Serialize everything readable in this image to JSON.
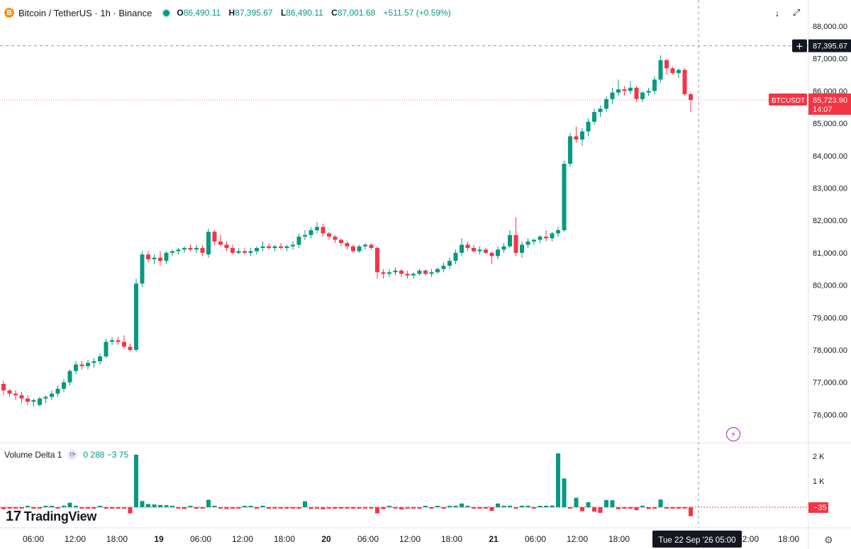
{
  "header": {
    "coin_icon": "B",
    "symbol_title": "Bitcoin / TetherUS · 1h · Binance",
    "ohlc": {
      "o_label": "O",
      "o": "86,490.11",
      "h_label": "H",
      "h": "87,395.67",
      "l_label": "L",
      "l": "86,490.11",
      "c_label": "C",
      "c": "87,001.68",
      "change": "+511.57 (+0.59%)"
    },
    "buttons": {
      "down_icon": "↓",
      "fullscreen_icon": "⤢"
    }
  },
  "price_axis": {
    "labels": [
      "88,000.00",
      "87,000.00",
      "86,000.00",
      "85,000.00",
      "84,000.00",
      "83,000.00",
      "82,000.00",
      "81,000.00",
      "80,000.00",
      "79,000.00",
      "78,000.00",
      "77,000.00",
      "76,000.00"
    ],
    "crosshair_price": "87,395.67",
    "crosshair_icon": "+",
    "symbol_tag": "BTCUSDT",
    "last_price": "85,723.90",
    "countdown": "14:07"
  },
  "volume": {
    "title": "Volume Delta",
    "param": "1",
    "settings_icon": "⟳",
    "values": "0  288  −3  75",
    "axis_labels": [
      "2 K",
      "1 K"
    ],
    "current": "−35"
  },
  "time_axis": {
    "labels": [
      "06:00",
      "12:00",
      "18:00",
      "19",
      "06:00",
      "12:00",
      "18:00",
      "20",
      "06:00",
      "12:00",
      "18:00",
      "21",
      "06:00",
      "12:00",
      "18:00",
      "12:00",
      "18:00"
    ],
    "crosshair_label": "Tue 22 Sep '26   05:00"
  },
  "branding": {
    "logo_mark": "17",
    "logo_text": "TradingView"
  },
  "icons": {
    "bolt": "⚡",
    "gear": "⚙"
  },
  "colors": {
    "up": "#089981",
    "down": "#f23645",
    "text": "#131722"
  },
  "chart_data": {
    "type": "candlestick",
    "interval": "1h",
    "ylim": [
      75500,
      88300
    ],
    "candles": [
      [
        76950,
        77050,
        76600,
        76750
      ],
      [
        76750,
        76800,
        76550,
        76650
      ],
      [
        76650,
        76750,
        76450,
        76600
      ],
      [
        76600,
        76700,
        76350,
        76500
      ],
      [
        76500,
        76600,
        76300,
        76400
      ],
      [
        76400,
        76500,
        76250,
        76450
      ],
      [
        76300,
        76550,
        76250,
        76500
      ],
      [
        76500,
        76600,
        76350,
        76550
      ],
      [
        76550,
        76750,
        76450,
        76650
      ],
      [
        76650,
        76900,
        76550,
        76800
      ],
      [
        76800,
        77100,
        76700,
        77000
      ],
      [
        77000,
        77400,
        76900,
        77350
      ],
      [
        77350,
        77650,
        77250,
        77550
      ],
      [
        77550,
        77650,
        77400,
        77500
      ],
      [
        77500,
        77700,
        77400,
        77600
      ],
      [
        77600,
        77750,
        77450,
        77650
      ],
      [
        77650,
        77900,
        77550,
        77800
      ],
      [
        77800,
        78350,
        77750,
        78250
      ],
      [
        78250,
        78400,
        78150,
        78300
      ],
      [
        78300,
        78400,
        78150,
        78250
      ],
      [
        78250,
        78450,
        78050,
        78100
      ],
      [
        78100,
        78200,
        77950,
        78000
      ],
      [
        78000,
        80200,
        77950,
        80050
      ],
      [
        80050,
        81050,
        79950,
        80950
      ],
      [
        80950,
        81050,
        80700,
        80800
      ],
      [
        80800,
        80950,
        80650,
        80850
      ],
      [
        80850,
        81050,
        80600,
        80750
      ],
      [
        80750,
        81050,
        80650,
        81000
      ],
      [
        81000,
        81100,
        80900,
        81050
      ],
      [
        81050,
        81150,
        80950,
        81100
      ],
      [
        81100,
        81200,
        81000,
        81150
      ],
      [
        81150,
        81250,
        81050,
        81100
      ],
      [
        81100,
        81250,
        81000,
        81150
      ],
      [
        81150,
        81250,
        80900,
        81000
      ],
      [
        80950,
        81750,
        80850,
        81650
      ],
      [
        81650,
        81700,
        81250,
        81350
      ],
      [
        81350,
        81550,
        81200,
        81250
      ],
      [
        81250,
        81350,
        81050,
        81150
      ],
      [
        81150,
        81250,
        80950,
        81000
      ],
      [
        81000,
        81150,
        80950,
        81050
      ],
      [
        81050,
        81150,
        80950,
        81000
      ],
      [
        81000,
        81150,
        80900,
        81050
      ],
      [
        81050,
        81200,
        80950,
        81150
      ],
      [
        81150,
        81350,
        81050,
        81200
      ],
      [
        81200,
        81300,
        81100,
        81150
      ],
      [
        81150,
        81250,
        81050,
        81200
      ],
      [
        81200,
        81300,
        81100,
        81150
      ],
      [
        81150,
        81250,
        81050,
        81200
      ],
      [
        81200,
        81350,
        81100,
        81250
      ],
      [
        81250,
        81600,
        81150,
        81500
      ],
      [
        81500,
        81700,
        81400,
        81550
      ],
      [
        81550,
        81800,
        81450,
        81700
      ],
      [
        81700,
        81950,
        81600,
        81800
      ],
      [
        81800,
        81900,
        81500,
        81600
      ],
      [
        81600,
        81650,
        81400,
        81500
      ],
      [
        81500,
        81550,
        81300,
        81400
      ],
      [
        81400,
        81450,
        81200,
        81300
      ],
      [
        81300,
        81350,
        81100,
        81200
      ],
      [
        81200,
        81250,
        81000,
        81050
      ],
      [
        81050,
        81250,
        81000,
        81200
      ],
      [
        81200,
        81300,
        81100,
        81250
      ],
      [
        81250,
        81300,
        81100,
        81150
      ],
      [
        81150,
        81200,
        80200,
        80400
      ],
      [
        80400,
        80500,
        80200,
        80350
      ],
      [
        80350,
        80500,
        80250,
        80400
      ],
      [
        80400,
        80550,
        80300,
        80450
      ],
      [
        80450,
        80500,
        80250,
        80350
      ],
      [
        80350,
        80450,
        80200,
        80300
      ],
      [
        80300,
        80400,
        80200,
        80350
      ],
      [
        80350,
        80500,
        80300,
        80450
      ],
      [
        80450,
        80500,
        80300,
        80350
      ],
      [
        80350,
        80500,
        80250,
        80400
      ],
      [
        80400,
        80550,
        80350,
        80500
      ],
      [
        80500,
        80700,
        80400,
        80600
      ],
      [
        80600,
        80850,
        80500,
        80750
      ],
      [
        80750,
        81100,
        80650,
        81000
      ],
      [
        81000,
        81450,
        80900,
        81250
      ],
      [
        81250,
        81350,
        81050,
        81150
      ],
      [
        81150,
        81250,
        81000,
        81050
      ],
      [
        81050,
        81200,
        80950,
        81100
      ],
      [
        81100,
        81150,
        80950,
        81000
      ],
      [
        81000,
        81050,
        80650,
        80900
      ],
      [
        80900,
        81200,
        80800,
        81100
      ],
      [
        81100,
        81300,
        81000,
        81200
      ],
      [
        81200,
        81700,
        81150,
        81550
      ],
      [
        81550,
        82100,
        80900,
        81000
      ],
      [
        81000,
        81350,
        80850,
        81250
      ],
      [
        81250,
        81450,
        81150,
        81350
      ],
      [
        81350,
        81450,
        81250,
        81400
      ],
      [
        81400,
        81550,
        81300,
        81500
      ],
      [
        81500,
        81700,
        81350,
        81450
      ],
      [
        81450,
        81650,
        81350,
        81600
      ],
      [
        81600,
        81800,
        81500,
        81700
      ],
      [
        81700,
        83850,
        81650,
        83750
      ],
      [
        83750,
        84700,
        83650,
        84600
      ],
      [
        84600,
        84900,
        84400,
        84500
      ],
      [
        84500,
        84850,
        84300,
        84750
      ],
      [
        84750,
        85150,
        84600,
        85050
      ],
      [
        85050,
        85450,
        84950,
        85350
      ],
      [
        85350,
        85550,
        85200,
        85450
      ],
      [
        85450,
        85850,
        85350,
        85750
      ],
      [
        85750,
        86100,
        85600,
        85950
      ],
      [
        85950,
        86350,
        85850,
        86050
      ],
      [
        86050,
        86150,
        85850,
        86000
      ],
      [
        86000,
        86300,
        85900,
        86100
      ],
      [
        86100,
        86150,
        85650,
        85750
      ],
      [
        85750,
        86000,
        85650,
        85950
      ],
      [
        85950,
        86100,
        85850,
        86000
      ],
      [
        86000,
        86450,
        85900,
        86350
      ],
      [
        86350,
        87100,
        86250,
        86950
      ],
      [
        86950,
        87000,
        86500,
        86700
      ],
      [
        86700,
        86750,
        86500,
        86550
      ],
      [
        86550,
        86700,
        86400,
        86650
      ],
      [
        86650,
        86700,
        85850,
        85900
      ],
      [
        85900,
        85950,
        85350,
        85724
      ]
    ],
    "volume_delta": [
      -80,
      -60,
      -50,
      -40,
      30,
      -20,
      -50,
      30,
      50,
      -40,
      60,
      180,
      60,
      -40,
      -50,
      -60,
      60,
      -60,
      -60,
      -50,
      -60,
      -250,
      2120,
      250,
      130,
      110,
      90,
      80,
      60,
      -40,
      -70,
      50,
      -40,
      -50,
      300,
      60,
      -40,
      -70,
      -50,
      -40,
      30,
      40,
      -50,
      60,
      -60,
      -40,
      -50,
      -40,
      -40,
      -50,
      240,
      -70,
      -60,
      -80,
      -50,
      -60,
      -50,
      -60,
      -60,
      -40,
      -50,
      -60,
      -250,
      -80,
      60,
      -40,
      -90,
      -50,
      -50,
      -60,
      50,
      -60,
      50,
      -60,
      50,
      50,
      150,
      60,
      -40,
      -60,
      -50,
      -150,
      150,
      50,
      60,
      -50,
      60,
      50,
      -40,
      50,
      60,
      70,
      2170,
      1160,
      -30,
      380,
      -160,
      200,
      -180,
      -230,
      290,
      280,
      -80,
      -60,
      -50,
      -120,
      60,
      -70,
      -50,
      310,
      -40,
      -60,
      -50,
      -40,
      -360
    ]
  }
}
